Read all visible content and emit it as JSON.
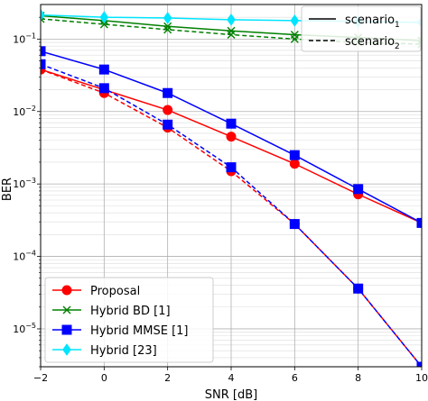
{
  "chart_data": {
    "type": "line",
    "title": "",
    "xlabel": "SNR [dB]",
    "ylabel": "BER",
    "xlim": [
      -2,
      10
    ],
    "ylim": [
      3e-06,
      0.3
    ],
    "yscale": "log",
    "grid": true,
    "x_ticks": [
      -2,
      0,
      2,
      4,
      6,
      8,
      10
    ],
    "y_ticks": [
      {
        "value": 1e-05,
        "label_base": "10",
        "label_exp": "−5"
      },
      {
        "value": 0.0001,
        "label_base": "10",
        "label_exp": "−4"
      },
      {
        "value": 0.001,
        "label_base": "10",
        "label_exp": "−3"
      },
      {
        "value": 0.01,
        "label_base": "10",
        "label_exp": "−2"
      },
      {
        "value": 0.1,
        "label_base": "10",
        "label_exp": "−1"
      }
    ],
    "x": [
      -2,
      0,
      2,
      4,
      6,
      8,
      10
    ],
    "series": [
      {
        "name": "Proposal",
        "color": "#ff0000",
        "marker": "circle",
        "linestyle": "solid",
        "values": [
          0.038,
          0.02,
          0.0105,
          0.0045,
          0.0019,
          0.00072,
          0.00029
        ]
      },
      {
        "name": "Proposal",
        "color": "#ff0000",
        "marker": "circle",
        "linestyle": "dashed",
        "values": [
          0.038,
          0.018,
          0.006,
          0.0015,
          0.00028,
          3.6e-05,
          3e-06
        ]
      },
      {
        "name": "Hybrid BD [1]",
        "color": "#008000",
        "marker": "x",
        "linestyle": "solid",
        "values": [
          0.21,
          0.18,
          0.15,
          0.13,
          0.115,
          0.105,
          0.095
        ]
      },
      {
        "name": "Hybrid BD [1]",
        "color": "#008000",
        "marker": "x",
        "linestyle": "dashed",
        "values": [
          0.19,
          0.16,
          0.135,
          0.115,
          0.1,
          0.09,
          0.085
        ]
      },
      {
        "name": "Hybrid MMSE [1]",
        "color": "#0000ff",
        "marker": "square",
        "linestyle": "solid",
        "values": [
          0.068,
          0.038,
          0.018,
          0.0068,
          0.0025,
          0.00085,
          0.00029
        ]
      },
      {
        "name": "Hybrid MMSE [1]",
        "color": "#0000ff",
        "marker": "square",
        "linestyle": "dashed",
        "values": [
          0.045,
          0.021,
          0.0066,
          0.0017,
          0.00028,
          3.6e-05,
          3e-06
        ]
      },
      {
        "name": "Hybrid [23]",
        "color": "#00e5ff",
        "marker": "diamond",
        "linestyle": "solid",
        "values": [
          0.215,
          0.2,
          0.195,
          0.185,
          0.18,
          0.175,
          0.17
        ]
      }
    ],
    "legend_markers": [
      {
        "label": "Proposal",
        "color": "#ff0000",
        "marker": "circle"
      },
      {
        "label": "Hybrid BD [1]",
        "color": "#008000",
        "marker": "x"
      },
      {
        "label": "Hybrid MMSE [1]",
        "color": "#0000ff",
        "marker": "square"
      },
      {
        "label": "Hybrid [23]",
        "color": "#00e5ff",
        "marker": "diamond"
      }
    ],
    "legend_markers_position": "bottom-left",
    "legend_linestyles": [
      {
        "label_base": "scenario",
        "label_sub": "1",
        "linestyle": "solid"
      },
      {
        "label_base": "scenario",
        "label_sub": "2",
        "linestyle": "dashed"
      }
    ],
    "legend_linestyles_position": "top-right"
  }
}
